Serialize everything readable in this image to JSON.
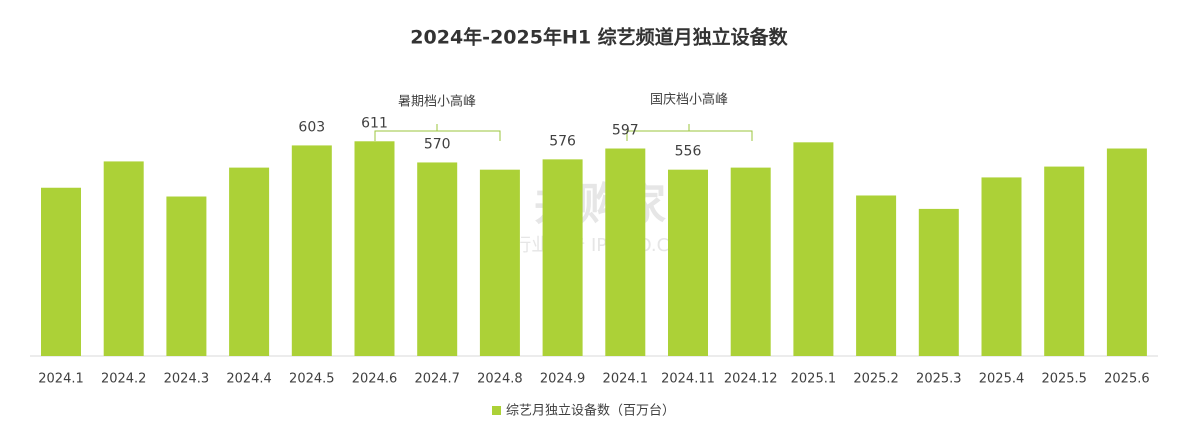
{
  "chart_data": {
    "type": "bar",
    "title": "2024年-2025年H1 综艺频道月独立设备数",
    "categories": [
      "2024.1",
      "2024.2",
      "2024.3",
      "2024.4",
      "2024.5",
      "2024.6",
      "2024.7",
      "2024.8",
      "2024.9",
      "2024.1",
      "2024.11",
      "2024.12",
      "2025.1",
      "2025.2",
      "2025.3",
      "2025.4",
      "2025.5",
      "2025.6"
    ],
    "series": [
      {
        "name": "综艺月独立设备数（百万台）",
        "color": "#acd137",
        "values": [
          521,
          572,
          504,
          560,
          603,
          611,
          570,
          556,
          576,
          597,
          556,
          560,
          609,
          506,
          480,
          541,
          562,
          597
        ],
        "data_labels": [
          null,
          null,
          null,
          null,
          603,
          611,
          570,
          null,
          576,
          597,
          556,
          null,
          null,
          null,
          null,
          null,
          null,
          null
        ]
      }
    ],
    "ylim": [
      195,
      660
    ],
    "annotations": [
      "暑期档小高峰",
      "国庆档小高峰"
    ],
    "watermark": [
      "并购家",
      "行业报告 IPOIPO.CN"
    ]
  }
}
